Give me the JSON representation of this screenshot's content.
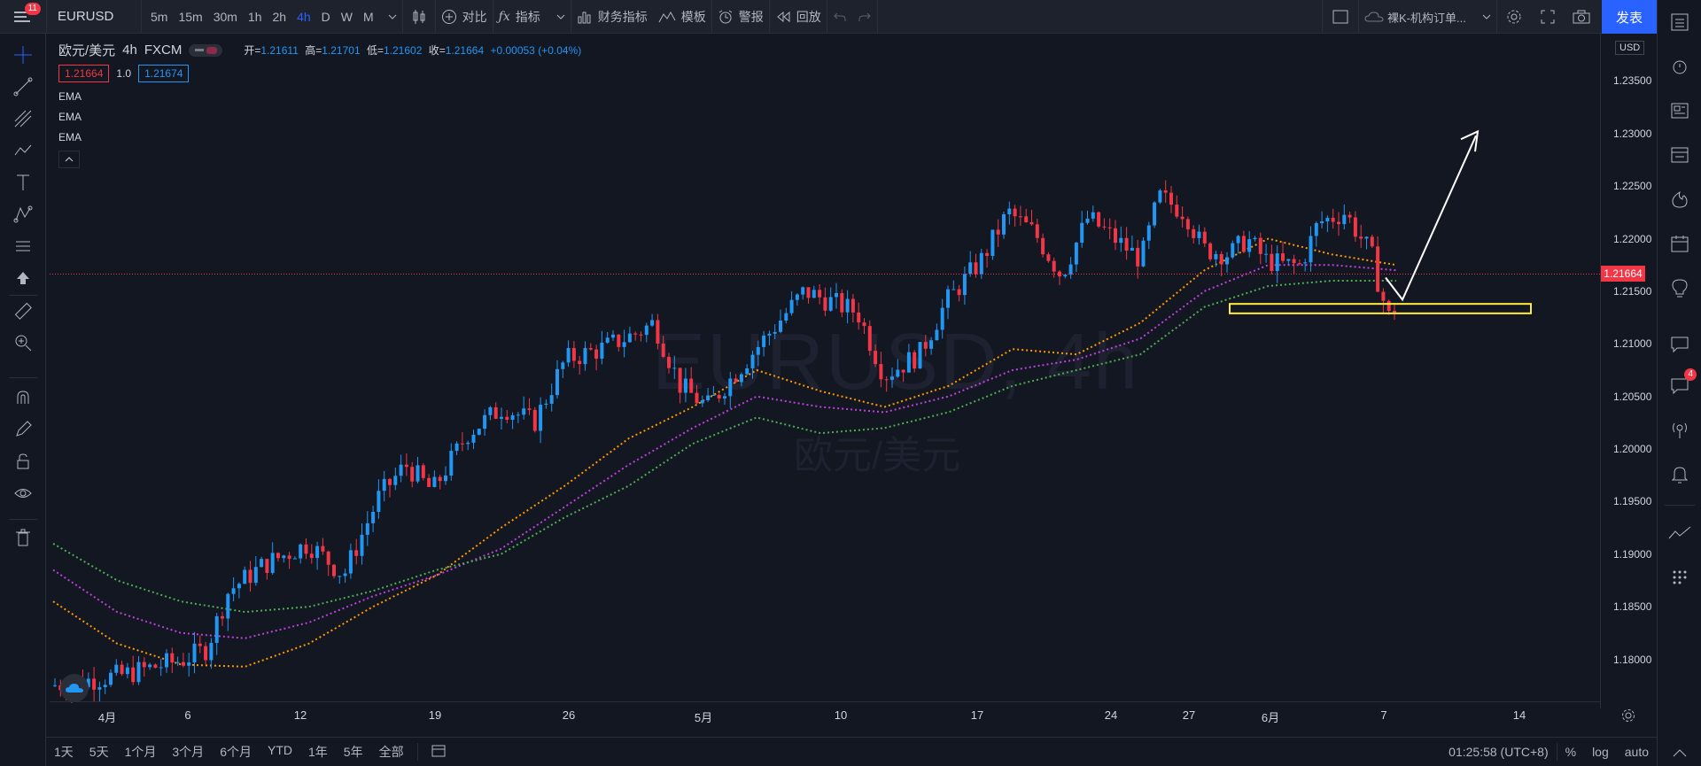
{
  "topbar": {
    "menu_badge": "11",
    "symbol": "EURUSD",
    "intervals": [
      "5m",
      "15m",
      "30m",
      "1h",
      "2h",
      "4h",
      "D",
      "W",
      "M"
    ],
    "active_interval": "4h",
    "compare": "对比",
    "indicators": "指标",
    "financials": "财务指标",
    "templates": "模板",
    "alerts": "警报",
    "replay": "回放",
    "layout_name": "裸K-机构订单...",
    "publish": "发表"
  },
  "legend": {
    "title": "欧元/美元",
    "interval": "4h",
    "exchange": "FXCM",
    "open_label": "开=",
    "open": "1.21611",
    "high_label": "高=",
    "high": "1.21701",
    "low_label": "低=",
    "low": "1.21602",
    "close_label": "收=",
    "close": "1.21664",
    "change": "+0.00053 (+0.04%)",
    "bid": "1.21664",
    "spread": "1.0",
    "ask": "1.21674",
    "indicators": [
      "EMA",
      "EMA",
      "EMA"
    ]
  },
  "watermark": {
    "symbol": "EURUSD, 4h",
    "name": "欧元/美元"
  },
  "price_axis": {
    "currency": "USD",
    "labels": [
      "1.23500",
      "1.23000",
      "1.22500",
      "1.22000",
      "1.21500",
      "1.21000",
      "1.20500",
      "1.20000",
      "1.19500",
      "1.19000",
      "1.18500",
      "1.18000"
    ],
    "current_price": "1.21664"
  },
  "time_axis": {
    "labels": [
      "4月",
      "6",
      "12",
      "19",
      "26",
      "5月",
      "10",
      "17",
      "24",
      "27",
      "6月",
      "7",
      "14"
    ]
  },
  "bottombar": {
    "ranges": [
      "1天",
      "5天",
      "1个月",
      "3个月",
      "6个月",
      "YTD",
      "1年",
      "5年",
      "全部"
    ],
    "time": "01:25:58 (UTC+8)",
    "percent": "%",
    "log": "log",
    "auto": "auto"
  },
  "right_badge": "4",
  "colors": {
    "background": "#131722",
    "up": "#2196f3",
    "down": "#f23645",
    "ema_fast": "#ff9800",
    "ema_mid": "#c040e0",
    "ema_slow": "#4caf50",
    "zone": "#ffeb3b",
    "arrow": "#ffffff"
  },
  "chart_data": {
    "type": "candlestick",
    "symbol": "EURUSD",
    "interval": "4h",
    "ylim": [
      1.176,
      1.2395
    ],
    "series": [
      {
        "name": "EMA",
        "color": "#ff9800",
        "y": [
          1.1855,
          1.1815,
          1.1795,
          1.1793,
          1.1815,
          1.185,
          1.188,
          1.1925,
          1.1965,
          1.201,
          1.204,
          1.2075,
          1.2055,
          1.204,
          1.206,
          1.2095,
          1.209,
          1.212,
          1.217,
          1.22,
          1.2185,
          1.2175
        ]
      },
      {
        "name": "EMA",
        "color": "#c040e0",
        "y": [
          1.1885,
          1.1845,
          1.1825,
          1.182,
          1.1835,
          1.186,
          1.188,
          1.1905,
          1.1945,
          1.1985,
          1.202,
          1.205,
          1.204,
          1.2035,
          1.205,
          1.2075,
          1.2085,
          1.2105,
          1.215,
          1.2175,
          1.2175,
          1.217
        ]
      },
      {
        "name": "EMA",
        "color": "#4caf50",
        "y": [
          1.191,
          1.1875,
          1.1855,
          1.1845,
          1.185,
          1.1865,
          1.1885,
          1.19,
          1.1935,
          1.1965,
          1.2005,
          1.203,
          1.2015,
          1.202,
          1.2035,
          1.206,
          1.2075,
          1.209,
          1.2135,
          1.2155,
          1.216,
          1.216
        ]
      }
    ]
  }
}
